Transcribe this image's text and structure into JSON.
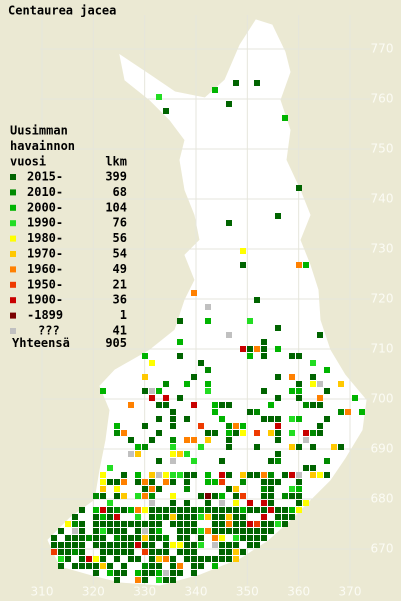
{
  "title": "Centaurea jacea",
  "legend": {
    "heading": [
      "Uusimman",
      "havainnon",
      "vuosi"
    ],
    "count_header": "lkm",
    "rows": [
      {
        "label": "2015-",
        "count": 399,
        "color": "#006400"
      },
      {
        "label": "2010-",
        "count": 68,
        "color": "#008a00"
      },
      {
        "label": "2000-",
        "count": 104,
        "color": "#00b400"
      },
      {
        "label": "1990-",
        "count": 76,
        "color": "#22dd22"
      },
      {
        "label": "1980-",
        "count": 56,
        "color": "#ffff00"
      },
      {
        "label": "1970-",
        "count": 54,
        "color": "#ffc800"
      },
      {
        "label": "1960-",
        "count": 49,
        "color": "#ff8000"
      },
      {
        "label": "1950-",
        "count": 21,
        "color": "#ee3a00"
      },
      {
        "label": "1900-",
        "count": 36,
        "color": "#c80000"
      },
      {
        "label": "-1899",
        "count": 1,
        "color": "#7a0000"
      },
      {
        "label": "???",
        "count": 41,
        "color": "#c0c0c0"
      }
    ],
    "total": {
      "label": "Yhteensä",
      "count": 905
    }
  },
  "axes": {
    "x_ticks": [
      310,
      320,
      330,
      340,
      350,
      360,
      370
    ],
    "y_ticks": [
      670,
      680,
      690,
      700,
      710,
      720,
      730,
      740,
      750,
      760,
      770
    ]
  }
}
